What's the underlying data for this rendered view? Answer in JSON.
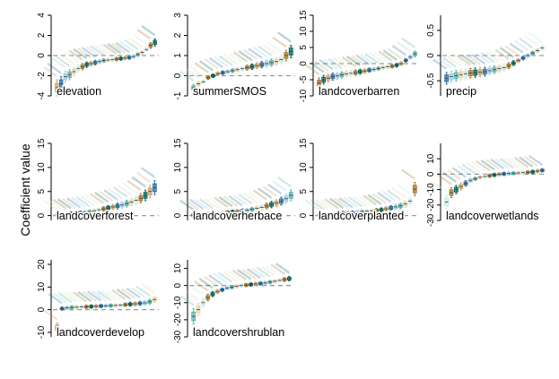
{
  "figure": {
    "ylabel": "Coefficient value",
    "colors": {
      "tan": "#c9a46a",
      "brown": "#a6782f",
      "lightTan": "#e7d3a8",
      "teal": "#5ab4ac",
      "darkTeal": "#01665e",
      "blue": "#2b6fa6",
      "lightBlue": "#9ecae1",
      "mint": "#c7eae5",
      "zero": "#9a9a9a"
    }
  },
  "chart_data": [
    {
      "type": "box",
      "title": "elevation",
      "ylim": [
        -4,
        4
      ],
      "yticks": [
        -4,
        -2,
        0,
        2,
        4
      ],
      "values": [
        -3.2,
        -2.8,
        -2.1,
        -1.9,
        -1.6,
        -1.3,
        -1.1,
        -0.9,
        -0.8,
        -0.7,
        -0.6,
        -0.5,
        -0.45,
        -0.4,
        -0.35,
        -0.3,
        -0.25,
        -0.2,
        -0.1,
        0.1,
        0.3,
        0.6,
        1.0,
        1.3
      ]
    },
    {
      "type": "box",
      "title": "summerSMOS",
      "ylim": [
        -1,
        3
      ],
      "yticks": [
        -1,
        0,
        1,
        2,
        3
      ],
      "values": [
        -0.6,
        -0.4,
        -0.3,
        -0.1,
        0.0,
        0.1,
        0.15,
        0.2,
        0.25,
        0.3,
        0.35,
        0.4,
        0.45,
        0.5,
        0.55,
        0.6,
        0.65,
        0.7,
        0.8,
        1.0,
        1.2
      ]
    },
    {
      "type": "box",
      "title": "landcoverbarren",
      "ylim": [
        -10,
        15
      ],
      "yticks": [
        -10,
        -5,
        0,
        5,
        10,
        15
      ],
      "values": [
        -6,
        -5,
        -4.5,
        -4,
        -3.8,
        -3.5,
        -3.2,
        -3,
        -2.8,
        -2.5,
        -2.3,
        -2,
        -1.8,
        -1.5,
        -1.2,
        -1,
        -0.8,
        -0.5,
        0,
        1,
        2,
        3
      ]
    },
    {
      "type": "box",
      "title": "precip",
      "ylim": [
        -0.8,
        0.8
      ],
      "yticks": [
        -0.5,
        0,
        0.5
      ],
      "values": [
        -0.45,
        -0.42,
        -0.4,
        -0.38,
        -0.36,
        -0.35,
        -0.34,
        -0.33,
        -0.32,
        -0.3,
        -0.28,
        -0.26,
        -0.24,
        -0.2,
        -0.15,
        -0.1,
        -0.05,
        0.0,
        0.05,
        0.1,
        0.15
      ]
    },
    {
      "type": "box",
      "title": "landcoverforest",
      "ylim": [
        -1,
        15
      ],
      "yticks": [
        0,
        5,
        10,
        15
      ],
      "values": [
        0.1,
        0.2,
        0.3,
        0.4,
        0.5,
        0.6,
        0.7,
        0.8,
        1.0,
        1.2,
        1.4,
        1.6,
        1.8,
        2.0,
        2.2,
        2.5,
        2.8,
        3.2,
        3.6,
        4.2,
        5.0,
        5.8
      ]
    },
    {
      "type": "box",
      "title": "landcoverherbace",
      "ylim": [
        -1,
        15
      ],
      "yticks": [
        0,
        5,
        10,
        15
      ],
      "values": [
        0.1,
        0.2,
        0.3,
        0.35,
        0.4,
        0.5,
        0.6,
        0.7,
        0.8,
        0.9,
        1.0,
        1.1,
        1.3,
        1.5,
        1.7,
        2.0,
        2.3,
        2.6,
        3.0,
        3.5,
        4.2
      ]
    },
    {
      "type": "box",
      "title": "landcoverplanted",
      "ylim": [
        -1,
        15
      ],
      "yticks": [
        0,
        5,
        10,
        15
      ],
      "values": [
        0.1,
        0.2,
        0.3,
        0.35,
        0.4,
        0.5,
        0.55,
        0.6,
        0.7,
        0.8,
        0.9,
        1.0,
        1.1,
        1.2,
        1.4,
        1.6,
        1.8,
        2.0,
        2.4,
        3.0,
        5.5
      ]
    },
    {
      "type": "box",
      "title": "landcoverwetlands",
      "ylim": [
        -30,
        20
      ],
      "yticks": [
        -30,
        -20,
        -10,
        0,
        10
      ],
      "values": [
        -18,
        -12,
        -10,
        -8,
        -6,
        -4,
        -3,
        -2,
        -1.5,
        -1,
        -0.5,
        0,
        0.2,
        0.4,
        0.6,
        0.8,
        1.0,
        1.2,
        1.5,
        2.0,
        2.5
      ]
    },
    {
      "type": "box",
      "title": "landcoverdevelop",
      "ylim": [
        -12,
        22
      ],
      "yticks": [
        -10,
        0,
        10,
        20
      ],
      "values": [
        -8,
        0.5,
        0.8,
        1.0,
        1.1,
        1.2,
        1.3,
        1.4,
        1.5,
        1.6,
        1.7,
        1.8,
        1.9,
        2.0,
        2.2,
        2.4,
        2.6,
        2.8,
        3.0,
        3.5,
        4.5
      ]
    },
    {
      "type": "box",
      "title": "landcovershrublan",
      "ylim": [
        -30,
        15
      ],
      "yticks": [
        -30,
        -20,
        -10,
        0,
        10
      ],
      "values": [
        -18,
        -14,
        -10,
        -7,
        -5,
        -3.5,
        -2.5,
        -1.5,
        -1,
        -0.5,
        0,
        0.3,
        0.6,
        0.9,
        1.2,
        1.5,
        2.0,
        2.5,
        3.0,
        3.5,
        4.0
      ]
    }
  ]
}
